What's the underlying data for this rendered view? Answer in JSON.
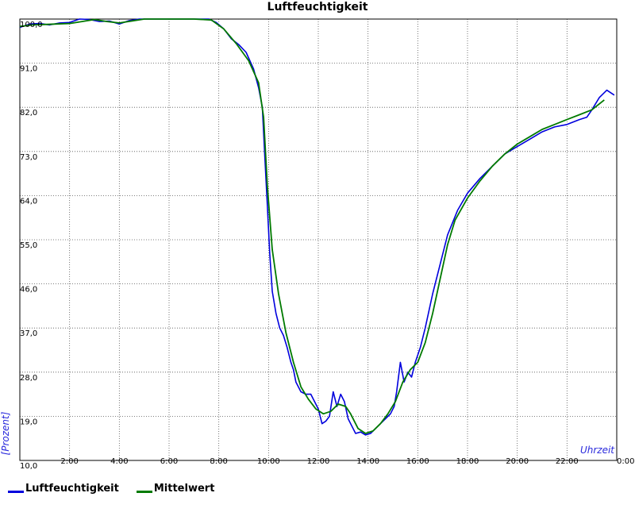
{
  "chart_data": {
    "type": "line",
    "title": "Luftfeuchtigkeit",
    "ylabel": "[Prozent]",
    "xlabel": "Uhrzeit",
    "ylim": [
      10,
      100
    ],
    "xlim": [
      0,
      24
    ],
    "y_ticks": [
      "10,0",
      "19,0",
      "28,0",
      "37,0",
      "46,0",
      "55,0",
      "64,0",
      "73,0",
      "82,0",
      "91,0",
      "100,0"
    ],
    "y_tick_values": [
      10,
      19,
      28,
      37,
      46,
      55,
      64,
      73,
      82,
      91,
      100
    ],
    "x_ticks": [
      "2:00",
      "4:00",
      "6:00",
      "8:00",
      "10:00",
      "12:00",
      "14:00",
      "16:00",
      "18:00",
      "20:00",
      "22:00",
      "0:00"
    ],
    "x_tick_values": [
      2,
      4,
      6,
      8,
      10,
      12,
      14,
      16,
      18,
      20,
      22,
      24
    ],
    "grid": true,
    "legend_position": "bottom-left",
    "series": [
      {
        "name": "Luftfeuchtigkeit",
        "color": "#0000dd",
        "x": [
          0,
          0.4,
          0.8,
          1.2,
          1.6,
          2.0,
          2.4,
          2.8,
          3.2,
          3.6,
          4.0,
          4.4,
          4.8,
          5.2,
          6.0,
          7.0,
          7.6,
          7.9,
          8.2,
          8.5,
          8.8,
          9.1,
          9.4,
          9.6,
          9.75,
          9.85,
          9.95,
          10.05,
          10.15,
          10.3,
          10.45,
          10.6,
          10.75,
          10.9,
          11.0,
          11.1,
          11.3,
          11.5,
          11.7,
          11.85,
          12.0,
          12.15,
          12.3,
          12.45,
          12.6,
          12.75,
          12.9,
          13.05,
          13.2,
          13.35,
          13.5,
          13.7,
          13.9,
          14.1,
          14.3,
          14.5,
          14.7,
          14.9,
          15.05,
          15.15,
          15.3,
          15.45,
          15.6,
          15.75,
          15.9,
          16.1,
          16.3,
          16.6,
          16.9,
          17.2,
          17.6,
          18.0,
          18.5,
          19.0,
          19.5,
          20.0,
          20.5,
          21.0,
          21.5,
          22.0,
          22.5,
          22.8,
          23.0,
          23.3,
          23.6,
          23.9
        ],
        "values": [
          98.3,
          99.0,
          99.1,
          98.8,
          99.2,
          99.3,
          100.0,
          99.9,
          99.5,
          99.6,
          99.0,
          99.7,
          100.0,
          100.0,
          100.0,
          100.0,
          100.0,
          99.3,
          98.0,
          96.0,
          94.8,
          93.2,
          89.8,
          86.0,
          82.0,
          72.0,
          62.0,
          52.0,
          44.5,
          40.0,
          37.0,
          35.5,
          33.0,
          30.0,
          28.5,
          26.0,
          24.0,
          23.5,
          23.5,
          22.0,
          20.5,
          17.5,
          18.0,
          19.0,
          24.0,
          21.0,
          23.5,
          22.0,
          18.5,
          17.0,
          15.5,
          15.8,
          15.2,
          15.5,
          16.5,
          17.5,
          18.5,
          19.5,
          21.0,
          24.0,
          30.0,
          26.0,
          28.0,
          27.0,
          30.0,
          33.0,
          37.0,
          44.0,
          50.0,
          56.0,
          61.0,
          64.5,
          67.5,
          70.0,
          72.5,
          74.0,
          75.5,
          77.0,
          78.0,
          78.5,
          79.5,
          80.0,
          81.5,
          84.0,
          85.5,
          84.5
        ]
      },
      {
        "name": "Mittelwert",
        "color": "#007a00",
        "x": [
          0,
          0.5,
          1.0,
          1.5,
          2.0,
          2.5,
          3.0,
          3.5,
          4.0,
          4.5,
          5.0,
          6.0,
          7.0,
          7.7,
          8.2,
          8.7,
          9.2,
          9.6,
          9.8,
          9.95,
          10.15,
          10.4,
          10.7,
          11.0,
          11.3,
          11.6,
          11.9,
          12.2,
          12.5,
          12.8,
          13.1,
          13.3,
          13.6,
          13.9,
          14.2,
          14.5,
          14.8,
          15.1,
          15.4,
          15.7,
          16.0,
          16.3,
          16.6,
          16.9,
          17.2,
          17.5,
          18.0,
          18.5,
          19.0,
          19.5,
          20.0,
          20.5,
          21.0,
          21.5,
          22.0,
          22.5,
          23.0,
          23.5
        ],
        "values": [
          98.5,
          98.8,
          98.9,
          99.0,
          99.1,
          99.5,
          99.9,
          99.5,
          99.2,
          99.6,
          100.0,
          100.0,
          100.0,
          99.8,
          98.0,
          95.0,
          91.5,
          87.0,
          80.0,
          66.0,
          53.0,
          44.0,
          36.0,
          30.0,
          25.0,
          22.5,
          20.5,
          19.5,
          20.0,
          21.5,
          21.0,
          19.5,
          16.5,
          15.5,
          16.0,
          17.5,
          19.5,
          22.0,
          26.0,
          28.5,
          30.0,
          34.0,
          40.0,
          47.0,
          54.0,
          59.0,
          63.5,
          67.0,
          70.0,
          72.5,
          74.5,
          76.0,
          77.5,
          78.5,
          79.5,
          80.5,
          81.5,
          83.5
        ]
      }
    ]
  }
}
